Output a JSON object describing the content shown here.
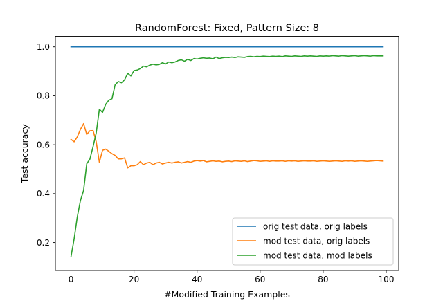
{
  "chart_data": {
    "type": "line",
    "title": "RandomForest: Fixed, Pattern Size: 8",
    "xlabel": "#Modified Training Examples",
    "ylabel": "Test accuracy",
    "xlim": [
      -4.95,
      103.95
    ],
    "ylim": [
      0.0857,
      1.043
    ],
    "x_ticks": [
      0,
      20,
      40,
      60,
      80,
      100
    ],
    "y_ticks": [
      0.2,
      0.4,
      0.6,
      0.8,
      1.0
    ],
    "x_tick_labels": [
      "0",
      "20",
      "40",
      "60",
      "80",
      "100"
    ],
    "y_tick_labels": [
      "0.2",
      "0.4",
      "0.6",
      "0.8",
      "1.0"
    ],
    "grid": false,
    "legend_position": "lower-right",
    "x_start": 0,
    "x_step": 1,
    "series": [
      {
        "name": "orig test data, orig labels",
        "color": "#1f77b4",
        "values": [
          1.0,
          1.0,
          1.0,
          1.0,
          1.0,
          1.0,
          1.0,
          1.0,
          1.0,
          1.0,
          1.0,
          1.0,
          1.0,
          1.0,
          1.0,
          1.0,
          1.0,
          1.0,
          1.0,
          1.0,
          1.0,
          1.0,
          1.0,
          1.0,
          1.0,
          1.0,
          1.0,
          1.0,
          1.0,
          1.0,
          1.0,
          1.0,
          1.0,
          1.0,
          1.0,
          1.0,
          1.0,
          1.0,
          1.0,
          1.0,
          1.0,
          1.0,
          1.0,
          1.0,
          1.0,
          1.0,
          1.0,
          1.0,
          1.0,
          1.0,
          1.0,
          1.0,
          1.0,
          1.0,
          1.0,
          1.0,
          1.0,
          1.0,
          1.0,
          1.0,
          1.0,
          1.0,
          1.0,
          1.0,
          1.0,
          1.0,
          1.0,
          1.0,
          1.0,
          1.0,
          1.0,
          1.0,
          1.0,
          1.0,
          1.0,
          1.0,
          1.0,
          1.0,
          1.0,
          1.0,
          1.0,
          1.0,
          1.0,
          1.0,
          1.0,
          1.0,
          1.0,
          1.0,
          1.0,
          1.0,
          1.0,
          1.0,
          1.0,
          1.0,
          1.0,
          1.0,
          1.0,
          1.0,
          1.0,
          1.0
        ]
      },
      {
        "name": "mod test data, orig labels",
        "color": "#ff7f0e",
        "values": [
          0.622,
          0.612,
          0.632,
          0.663,
          0.686,
          0.642,
          0.657,
          0.658,
          0.612,
          0.528,
          0.577,
          0.582,
          0.573,
          0.563,
          0.556,
          0.542,
          0.542,
          0.546,
          0.505,
          0.514,
          0.514,
          0.518,
          0.531,
          0.518,
          0.525,
          0.528,
          0.518,
          0.525,
          0.528,
          0.521,
          0.525,
          0.528,
          0.525,
          0.528,
          0.53,
          0.525,
          0.528,
          0.531,
          0.528,
          0.533,
          0.535,
          0.533,
          0.535,
          0.53,
          0.532,
          0.534,
          0.532,
          0.533,
          0.53,
          0.532,
          0.533,
          0.531,
          0.534,
          0.533,
          0.532,
          0.534,
          0.531,
          0.533,
          0.535,
          0.534,
          0.532,
          0.533,
          0.534,
          0.532,
          0.534,
          0.533,
          0.533,
          0.534,
          0.532,
          0.534,
          0.533,
          0.534,
          0.532,
          0.533,
          0.534,
          0.533,
          0.533,
          0.534,
          0.532,
          0.533,
          0.534,
          0.533,
          0.532,
          0.533,
          0.534,
          0.533,
          0.532,
          0.534,
          0.533,
          0.534,
          0.532,
          0.533,
          0.534,
          0.533,
          0.532,
          0.533,
          0.534,
          0.535,
          0.534,
          0.533
        ]
      },
      {
        "name": "mod test data, mod labels",
        "color": "#2ca02c",
        "values": [
          0.142,
          0.215,
          0.305,
          0.372,
          0.413,
          0.522,
          0.541,
          0.592,
          0.648,
          0.745,
          0.732,
          0.765,
          0.782,
          0.788,
          0.845,
          0.858,
          0.853,
          0.865,
          0.892,
          0.881,
          0.903,
          0.905,
          0.911,
          0.921,
          0.918,
          0.925,
          0.929,
          0.926,
          0.928,
          0.935,
          0.93,
          0.938,
          0.935,
          0.938,
          0.944,
          0.947,
          0.941,
          0.949,
          0.944,
          0.952,
          0.95,
          0.953,
          0.955,
          0.953,
          0.954,
          0.951,
          0.958,
          0.952,
          0.955,
          0.957,
          0.956,
          0.958,
          0.956,
          0.959,
          0.958,
          0.957,
          0.96,
          0.961,
          0.959,
          0.961,
          0.96,
          0.962,
          0.961,
          0.96,
          0.962,
          0.961,
          0.962,
          0.96,
          0.963,
          0.962,
          0.961,
          0.963,
          0.962,
          0.961,
          0.963,
          0.962,
          0.963,
          0.962,
          0.961,
          0.963,
          0.962,
          0.963,
          0.962,
          0.964,
          0.963,
          0.962,
          0.964,
          0.963,
          0.962,
          0.963,
          0.964,
          0.962,
          0.963,
          0.964,
          0.963,
          0.962,
          0.964,
          0.963,
          0.963,
          0.963
        ]
      }
    ]
  }
}
